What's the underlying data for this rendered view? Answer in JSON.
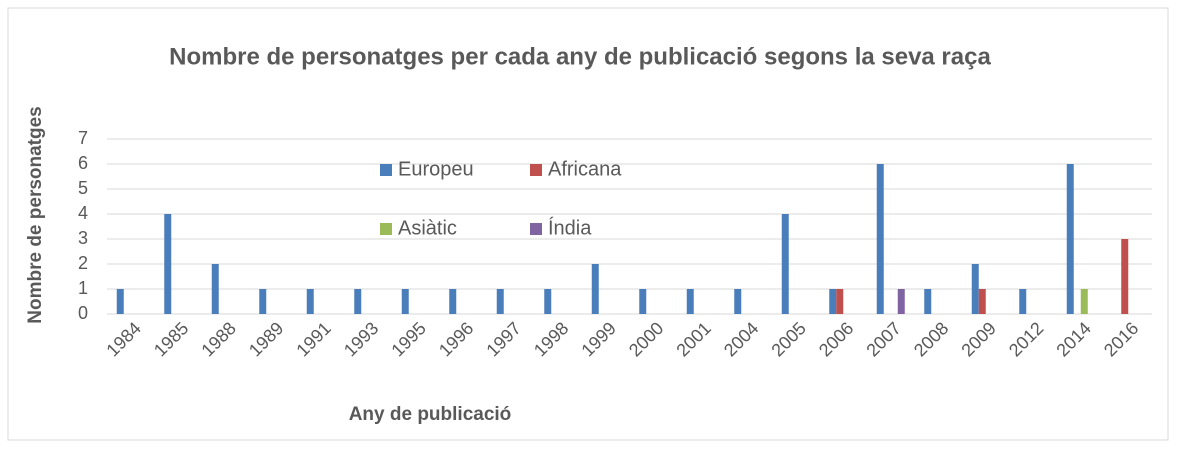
{
  "chart_data": {
    "type": "bar",
    "title": "Nombre de personatges per cada any de publicació segons la seva raça",
    "xlabel": "Any de publicació",
    "ylabel": "Nombre de personatges",
    "categories": [
      "1984",
      "1985",
      "1988",
      "1989",
      "1991",
      "1993",
      "1995",
      "1996",
      "1997",
      "1998",
      "1999",
      "2000",
      "2001",
      "2004",
      "2005",
      "2006",
      "2007",
      "2008",
      "2009",
      "2012",
      "2014",
      "2016"
    ],
    "series": [
      {
        "name": "Europeu",
        "color": "#4a7ebb",
        "values": [
          1,
          4,
          2,
          1,
          1,
          1,
          1,
          1,
          1,
          1,
          2,
          1,
          1,
          1,
          4,
          1,
          6,
          1,
          2,
          1,
          6,
          0
        ]
      },
      {
        "name": "Africana",
        "color": "#c0504d",
        "values": [
          0,
          0,
          0,
          0,
          0,
          0,
          0,
          0,
          0,
          0,
          0,
          0,
          0,
          0,
          0,
          1,
          0,
          0,
          1,
          0,
          0,
          3
        ]
      },
      {
        "name": "Asiàtic",
        "color": "#9bbb59",
        "values": [
          0,
          0,
          0,
          0,
          0,
          0,
          0,
          0,
          0,
          0,
          0,
          0,
          0,
          0,
          0,
          0,
          0,
          0,
          0,
          0,
          1,
          0
        ]
      },
      {
        "name": "Índia",
        "color": "#8064a2",
        "values": [
          0,
          0,
          0,
          0,
          0,
          0,
          0,
          0,
          0,
          0,
          0,
          0,
          0,
          0,
          0,
          0,
          1,
          0,
          0,
          0,
          0,
          0
        ]
      }
    ],
    "ylim": [
      0,
      7
    ],
    "yticks": [
      0,
      1,
      2,
      3,
      4,
      5,
      6,
      7
    ],
    "grid": true
  }
}
